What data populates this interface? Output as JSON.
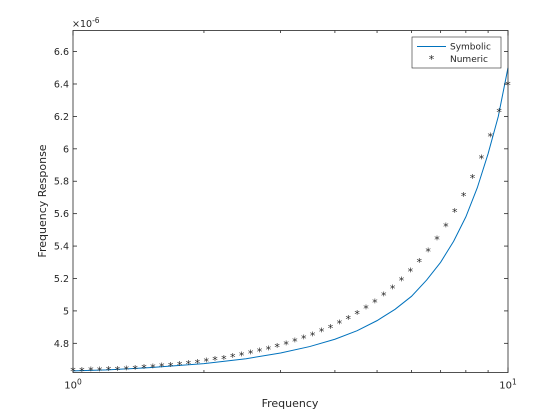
{
  "chart_data": {
    "type": "line",
    "xlabel": "Frequency",
    "ylabel": "Frequency Response",
    "x_scale": "log",
    "xlim": [
      1,
      10
    ],
    "ylim": [
      4.62,
      6.73
    ],
    "y_exponent_label": "×10",
    "y_exponent_power": "-6",
    "x_ticks": [
      {
        "value": 1,
        "base": "10",
        "power": "0"
      },
      {
        "value": 10,
        "base": "10",
        "power": "1"
      }
    ],
    "y_ticks": [
      4.8,
      5,
      5.2,
      5.4,
      5.6,
      5.8,
      6,
      6.2,
      6.4,
      6.6
    ],
    "y_tick_labels": [
      "4.8",
      "5",
      "5.2",
      "5.4",
      "5.6",
      "5.8",
      "6",
      "6.2",
      "6.4",
      "6.6"
    ],
    "grid": false,
    "legend_position": "top-right",
    "series": [
      {
        "name": "Symbolic",
        "style": "line",
        "color": "#0072bd",
        "x": [
          1,
          1.2,
          1.5,
          2,
          2.5,
          3,
          3.5,
          4,
          4.5,
          5,
          5.5,
          6,
          6.5,
          7,
          7.5,
          8,
          8.5,
          9,
          9.5,
          10
        ],
        "values": [
          4.63,
          4.636,
          4.65,
          4.675,
          4.705,
          4.74,
          4.78,
          4.825,
          4.878,
          4.94,
          5.01,
          5.09,
          5.19,
          5.3,
          5.43,
          5.58,
          5.76,
          5.97,
          6.2,
          6.5
        ]
      },
      {
        "name": "Numeric",
        "style": "marker",
        "marker": "*",
        "color": "#000000",
        "x": [
          1,
          1.048,
          1.099,
          1.151,
          1.207,
          1.265,
          1.326,
          1.389,
          1.456,
          1.526,
          1.6,
          1.677,
          1.758,
          1.842,
          1.931,
          2.024,
          2.121,
          2.223,
          2.33,
          2.442,
          2.56,
          2.683,
          2.812,
          2.947,
          3.089,
          3.237,
          3.393,
          3.556,
          3.728,
          3.907,
          4.095,
          4.292,
          4.498,
          4.715,
          4.942,
          5.179,
          5.429,
          5.69,
          5.964,
          6.251,
          6.551,
          6.866,
          7.197,
          7.543,
          7.906,
          8.286,
          8.685,
          9.103,
          9.541,
          10
        ],
        "values": [
          4.632,
          4.632,
          4.633,
          4.634,
          4.636,
          4.638,
          4.641,
          4.644,
          4.648,
          4.652,
          4.657,
          4.662,
          4.668,
          4.674,
          4.681,
          4.689,
          4.697,
          4.706,
          4.716,
          4.727,
          4.738,
          4.751,
          4.764,
          4.779,
          4.795,
          4.812,
          4.831,
          4.851,
          4.873,
          4.897,
          4.923,
          4.952,
          4.983,
          5.017,
          5.054,
          5.095,
          5.14,
          5.189,
          5.243,
          5.303,
          5.369,
          5.441,
          5.522,
          5.611,
          5.71,
          5.82,
          5.942,
          6.078,
          6.229,
          6.396
        ]
      }
    ]
  }
}
